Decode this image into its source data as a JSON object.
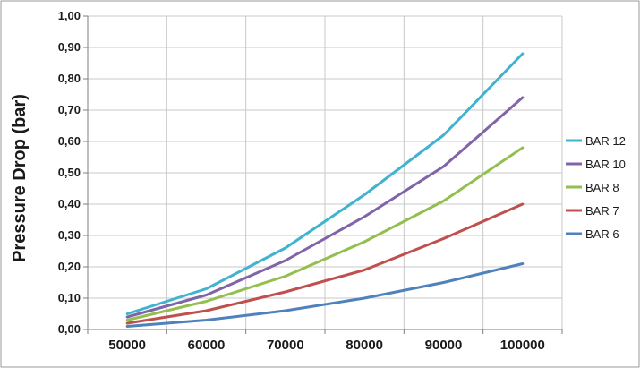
{
  "chart_data": {
    "type": "line",
    "title": "",
    "xlabel": "",
    "ylabel": "Pressure Drop (bar)",
    "x": [
      50000,
      60000,
      70000,
      80000,
      90000,
      100000
    ],
    "x_tick_labels": [
      "50000",
      "60000",
      "70000",
      "80000",
      "90000",
      "100000"
    ],
    "ylim": [
      0,
      1
    ],
    "y_tick_values": [
      0,
      0.1,
      0.2,
      0.3,
      0.4,
      0.5,
      0.6,
      0.7,
      0.8,
      0.9,
      1.0
    ],
    "y_tick_labels": [
      "0,00",
      "0,10",
      "0,20",
      "0,30",
      "0,40",
      "0,50",
      "0,60",
      "0,70",
      "0,80",
      "0,90",
      "1,00"
    ],
    "grid": true,
    "legend_position": "right",
    "series": [
      {
        "name": "BAR 12",
        "color": "#3fb3cf",
        "values": [
          0.05,
          0.13,
          0.26,
          0.43,
          0.62,
          0.88
        ]
      },
      {
        "name": "BAR 10",
        "color": "#8064a8",
        "values": [
          0.04,
          0.11,
          0.22,
          0.36,
          0.52,
          0.74
        ]
      },
      {
        "name": "BAR 8",
        "color": "#93bf4f",
        "values": [
          0.03,
          0.09,
          0.17,
          0.28,
          0.41,
          0.58
        ]
      },
      {
        "name": "BAR 7",
        "color": "#c0504d",
        "values": [
          0.02,
          0.06,
          0.12,
          0.19,
          0.29,
          0.4
        ]
      },
      {
        "name": "BAR 6",
        "color": "#4f81bd",
        "values": [
          0.01,
          0.03,
          0.06,
          0.1,
          0.15,
          0.21
        ]
      }
    ]
  }
}
